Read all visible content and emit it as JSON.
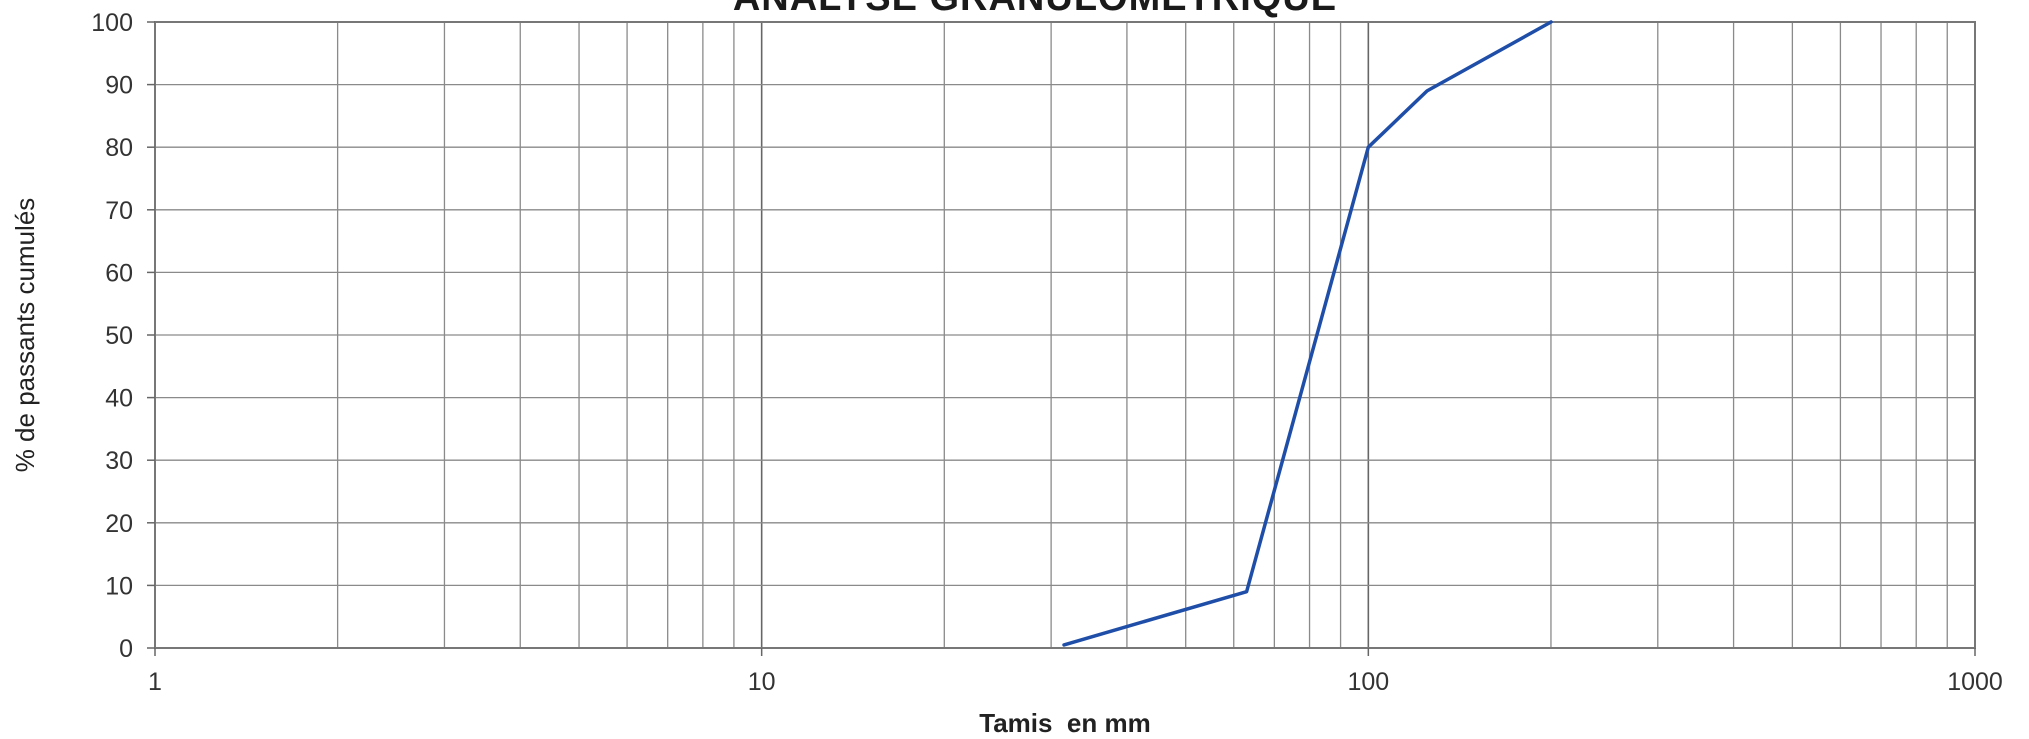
{
  "chart_data": {
    "type": "line",
    "title": "ANALYSE GRANULOMETRIQUE",
    "xlabel": "Tamis  en mm",
    "ylabel": "% de passants cumulés",
    "xscale": "log",
    "xlim": [
      1,
      1000
    ],
    "ylim": [
      0,
      100
    ],
    "xticks": [
      1,
      10,
      100,
      1000
    ],
    "xtick_labels": [
      "1",
      "10",
      "100",
      "1000"
    ],
    "yticks": [
      0,
      10,
      20,
      30,
      40,
      50,
      60,
      70,
      80,
      90,
      100
    ],
    "ytick_labels": [
      "0",
      "10",
      "20",
      "30",
      "40",
      "50",
      "60",
      "70",
      "80",
      "90",
      "100"
    ],
    "grid": true,
    "legend": "none",
    "series": [
      {
        "x": [
          31.5,
          63,
          100,
          125,
          200
        ],
        "y": [
          0.5,
          9,
          80,
          89,
          100
        ],
        "color": "#1f4ea8"
      }
    ]
  }
}
